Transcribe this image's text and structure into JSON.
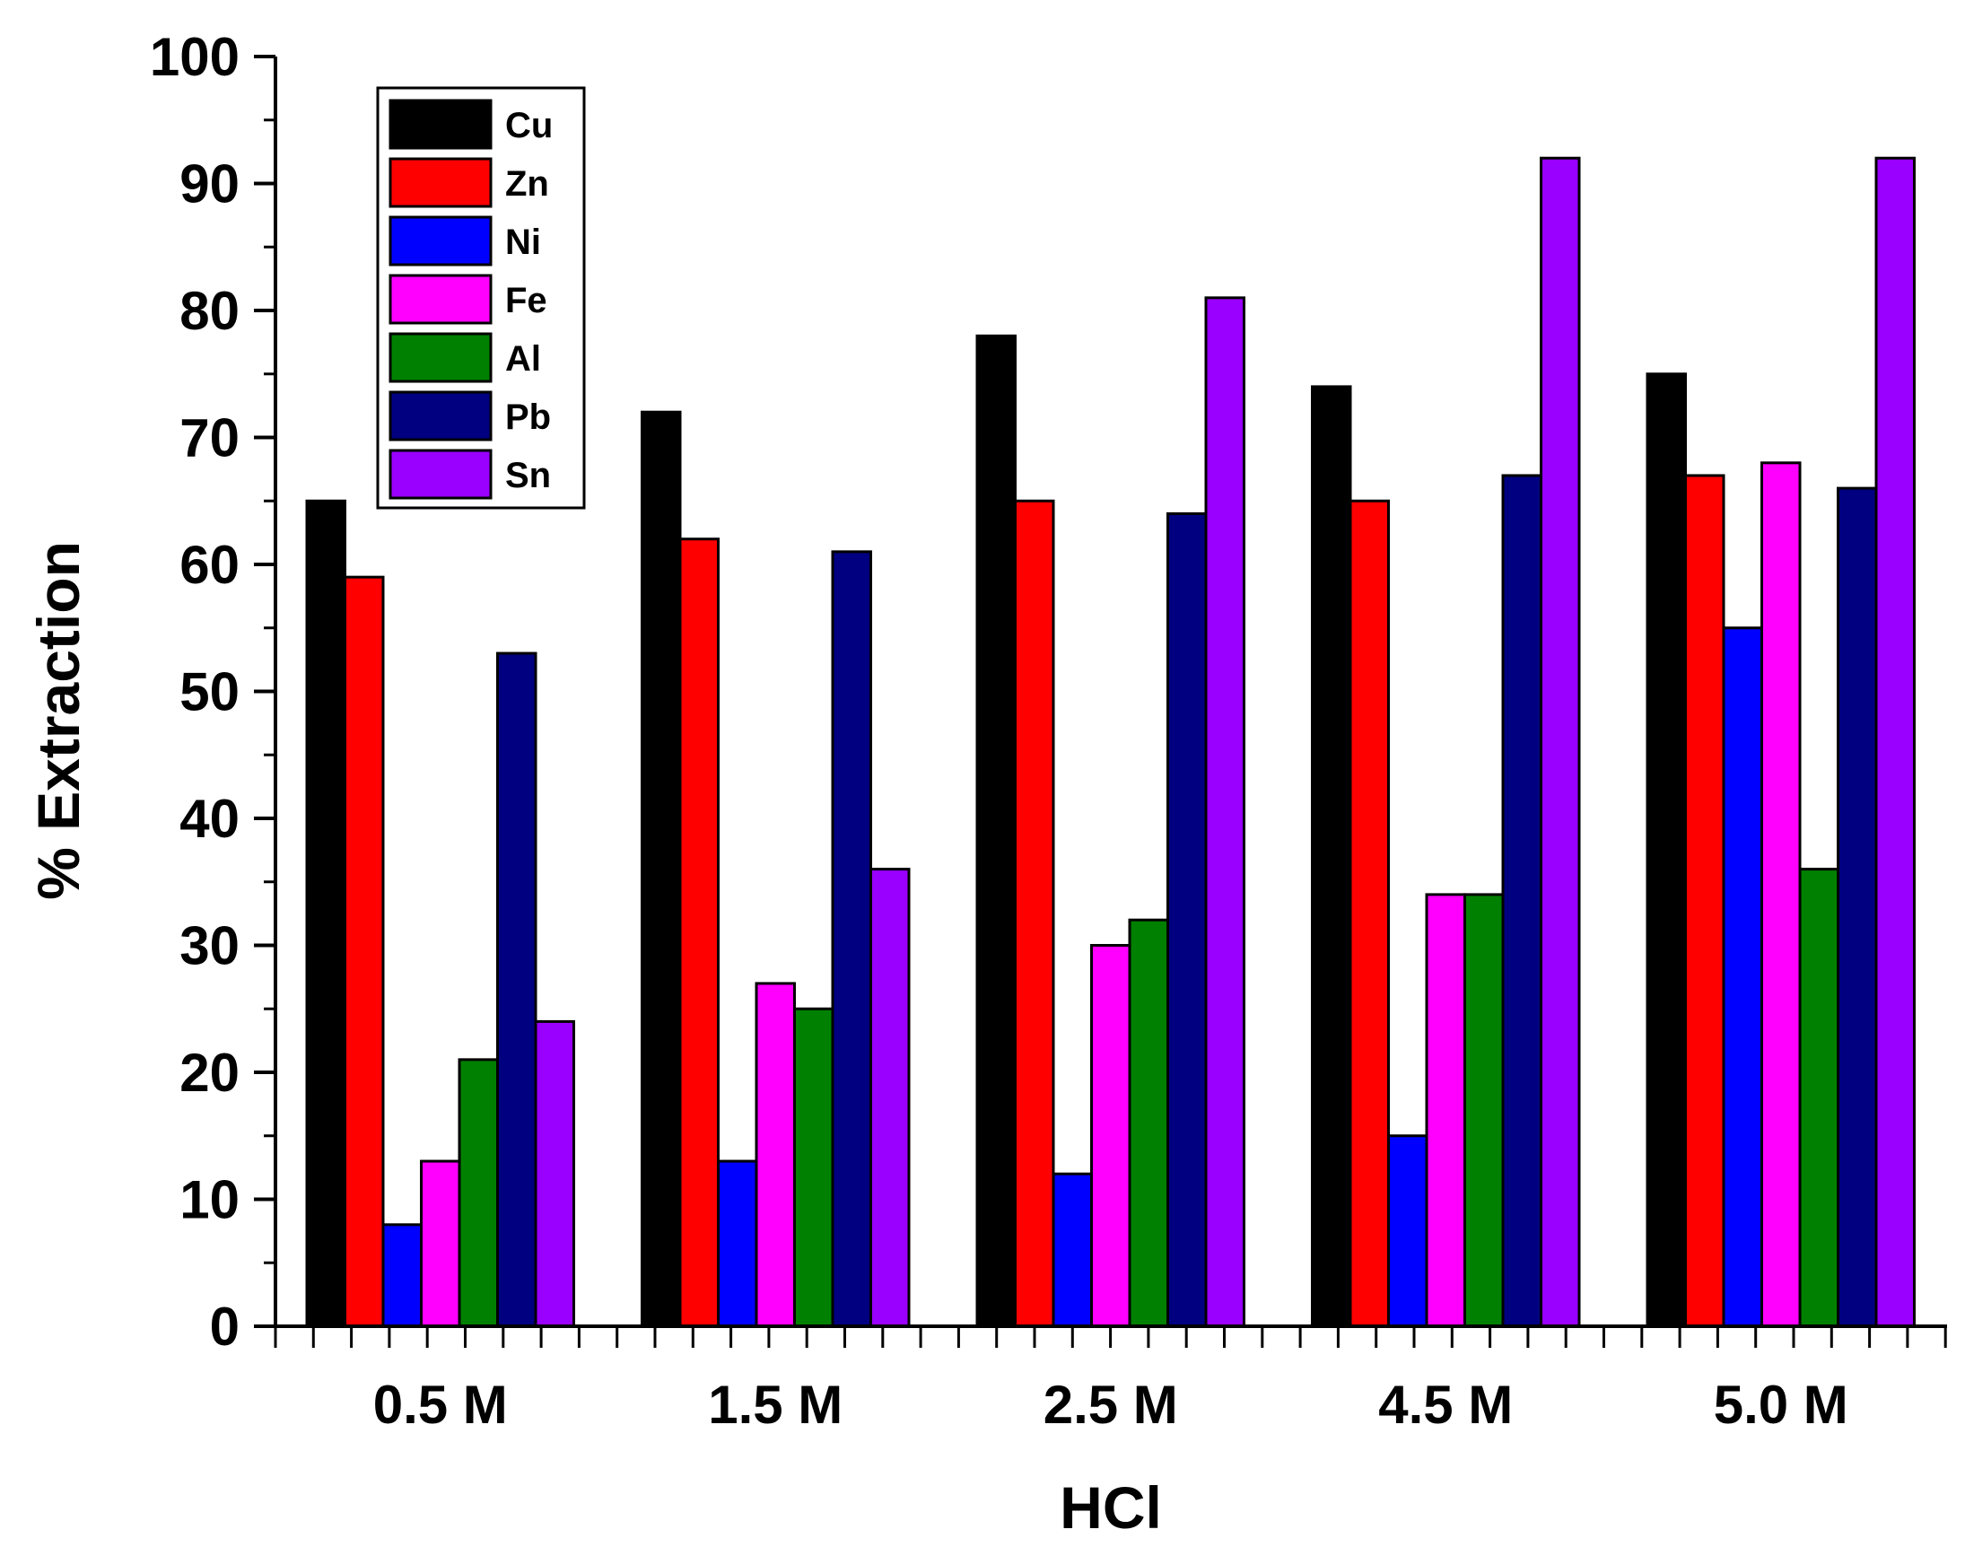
{
  "chart_data": {
    "type": "bar",
    "title": "",
    "xlabel": "HCl",
    "ylabel": "% Extraction",
    "ylim": [
      0,
      100
    ],
    "yticks": [
      "0",
      "10",
      "20",
      "30",
      "40",
      "50",
      "60",
      "70",
      "80",
      "90",
      "100"
    ],
    "categories": [
      "0.5 M",
      "1.5 M",
      "2.5 M",
      "4.5 M",
      "5.0 M"
    ],
    "legend_position": "top-left",
    "series": [
      {
        "name": "Cu",
        "color": "#000000",
        "values": [
          65,
          72,
          78,
          74,
          75
        ]
      },
      {
        "name": "Zn",
        "color": "#ff0000",
        "values": [
          59,
          62,
          65,
          65,
          67
        ]
      },
      {
        "name": "Ni",
        "color": "#0000ff",
        "values": [
          8,
          13,
          12,
          15,
          55
        ]
      },
      {
        "name": "Fe",
        "color": "#ff00ff",
        "values": [
          13,
          27,
          30,
          34,
          68
        ]
      },
      {
        "name": "Al",
        "color": "#008000",
        "values": [
          21,
          25,
          32,
          34,
          36
        ]
      },
      {
        "name": "Pb",
        "color": "#000080",
        "values": [
          53,
          61,
          64,
          67,
          66
        ]
      },
      {
        "name": "Sn",
        "color": "#9900ff",
        "values": [
          24,
          36,
          81,
          92,
          92
        ]
      }
    ]
  }
}
